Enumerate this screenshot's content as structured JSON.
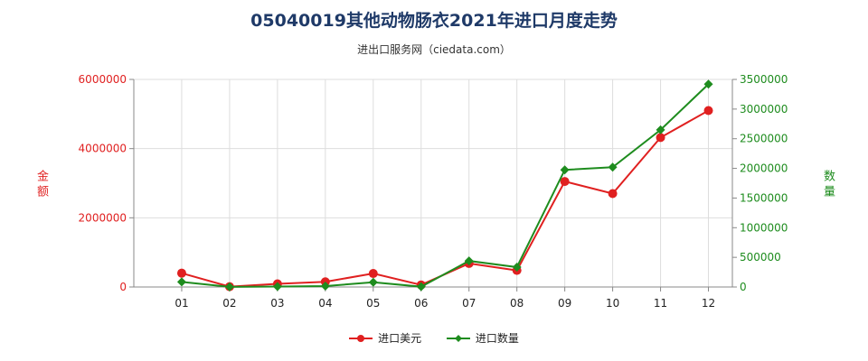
{
  "title": "05040019其他动物肠衣2021年进口月度走势",
  "subtitle": "进出口服务网（ciedata.com）",
  "left_axis_title": "金额",
  "right_axis_title": "数量",
  "colors": {
    "usd": "#e02020",
    "qty": "#1e8c1e"
  },
  "chart_data": {
    "type": "line",
    "categories": [
      "01",
      "02",
      "03",
      "04",
      "05",
      "06",
      "07",
      "08",
      "09",
      "10",
      "11",
      "12"
    ],
    "series": [
      {
        "name": "进口美元",
        "axis": "left",
        "color": "#e02020",
        "values": [
          400000,
          10000,
          90000,
          150000,
          390000,
          60000,
          680000,
          480000,
          3050000,
          2700000,
          4320000,
          5100000
        ]
      },
      {
        "name": "进口数量",
        "axis": "right",
        "color": "#1e8c1e",
        "values": [
          85000,
          2000,
          8000,
          15000,
          80000,
          5000,
          440000,
          335000,
          1975000,
          2020000,
          2650000,
          3420000
        ]
      }
    ],
    "y_left": {
      "ylim": [
        0,
        6000000
      ],
      "ticks": [
        "0",
        "2000000",
        "4000000",
        "6000000"
      ],
      "tick_values": [
        0,
        2000000,
        4000000,
        6000000
      ]
    },
    "y_right": {
      "ylim": [
        0,
        3500000
      ],
      "ticks": [
        "0",
        "500000",
        "1000000",
        "1500000",
        "2000000",
        "2500000",
        "3000000",
        "3500000"
      ],
      "tick_values": [
        0,
        500000,
        1000000,
        1500000,
        2000000,
        2500000,
        3000000,
        3500000
      ]
    },
    "grid": true,
    "legend_position": "bottom"
  }
}
